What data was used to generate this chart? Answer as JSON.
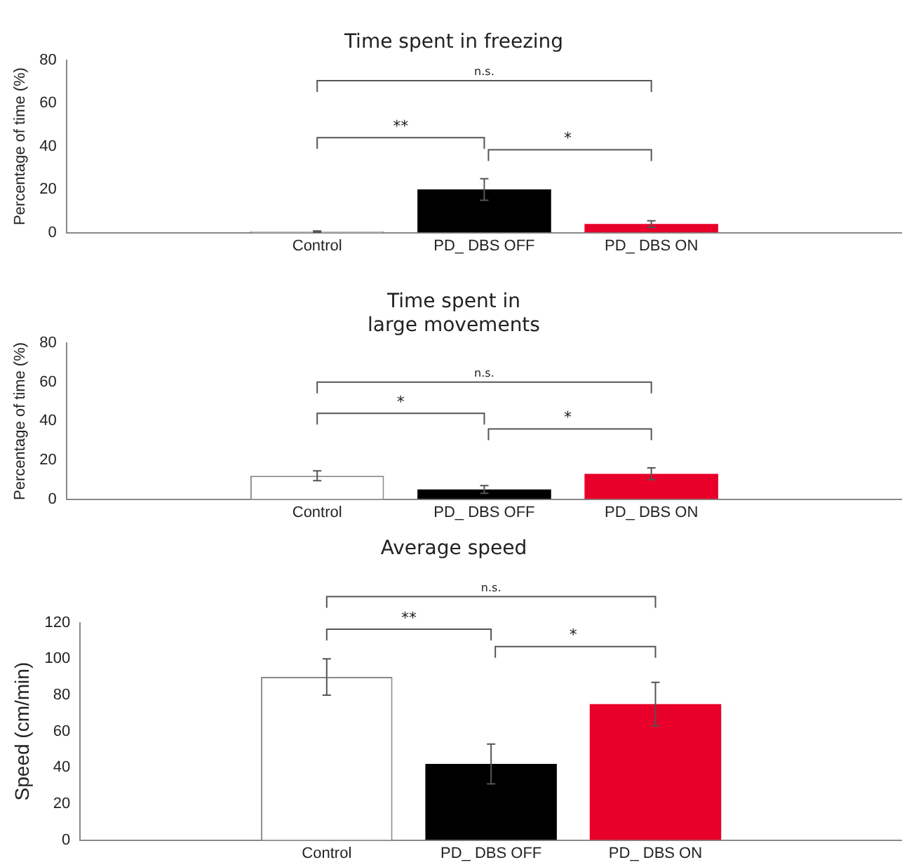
{
  "chart_data": [
    {
      "type": "bar",
      "title": "Time spent in freezing",
      "ylabel": "Percentage of time (%)",
      "categories": [
        null,
        "Control",
        "PD_ DBS OFF",
        "PD_ DBS ON",
        null
      ],
      "values": [
        null,
        0.5,
        20,
        4,
        null
      ],
      "errors": [
        null,
        0.3,
        5,
        1.5,
        null
      ],
      "colors": [
        "#ffffff",
        "#ffffff",
        "#000000",
        "#e8002a",
        "#ffffff"
      ],
      "ylim": [
        0,
        80
      ],
      "yticks": [
        0,
        20,
        40,
        60,
        80
      ],
      "grid": false,
      "legend": false,
      "annotations": [
        "**",
        "*",
        "n.s."
      ]
    },
    {
      "type": "bar",
      "title": "Time spent in\nlarge movements",
      "ylabel": "Percentage of time (%)",
      "categories": [
        null,
        "Control",
        "PD_ DBS OFF",
        "PD_ DBS ON",
        null
      ],
      "values": [
        null,
        12,
        5,
        13,
        null
      ],
      "errors": [
        null,
        2.5,
        2,
        3,
        null
      ],
      "colors": [
        "#ffffff",
        "#ffffff",
        "#000000",
        "#e8002a",
        "#ffffff"
      ],
      "ylim": [
        0,
        80
      ],
      "yticks": [
        0,
        20,
        40,
        60,
        80
      ],
      "grid": false,
      "legend": false,
      "annotations": [
        "*",
        "*",
        "n.s."
      ]
    },
    {
      "type": "bar",
      "title": "Average speed",
      "ylabel": "Speed (cm/min)",
      "categories": [
        null,
        "Control",
        "PD_ DBS OFF",
        "PD_ DBS ON",
        null
      ],
      "values": [
        null,
        90,
        42,
        75,
        null
      ],
      "errors": [
        null,
        10,
        11,
        12,
        null
      ],
      "colors": [
        "#ffffff",
        "#ffffff",
        "#000000",
        "#e8002a",
        "#ffffff"
      ],
      "ylim": [
        0,
        120
      ],
      "yticks": [
        0,
        20,
        40,
        60,
        80,
        100,
        120
      ],
      "grid": false,
      "legend": false,
      "annotations": [
        "**",
        "*",
        "n.s."
      ]
    }
  ]
}
